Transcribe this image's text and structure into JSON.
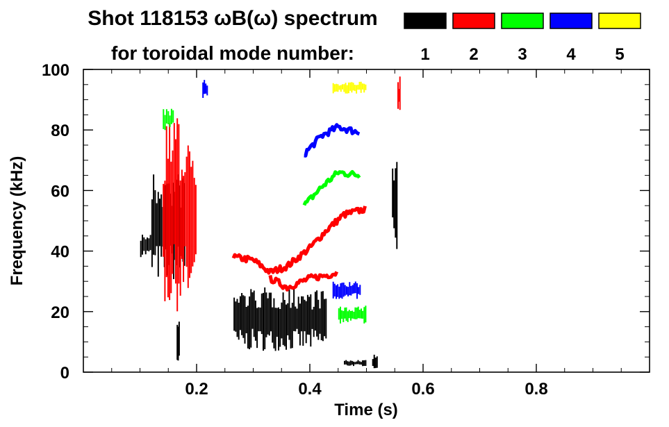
{
  "chart_data": {
    "type": "spectrogram",
    "title_line1": "Shot 118153 ωB(ω) spectrum",
    "title_line2": "for toroidal mode number:",
    "xlabel": "Time (s)",
    "ylabel": "Frequency (kHz)",
    "xlim": [
      0.0,
      1.0
    ],
    "ylim": [
      0,
      100
    ],
    "x_ticks": [
      {
        "value": 0.2,
        "label": "0.2"
      },
      {
        "value": 0.4,
        "label": "0.4"
      },
      {
        "value": 0.6,
        "label": "0.6"
      },
      {
        "value": 0.8,
        "label": "0.8"
      }
    ],
    "y_ticks": [
      {
        "value": 0,
        "label": "0"
      },
      {
        "value": 20,
        "label": "20"
      },
      {
        "value": 40,
        "label": "40"
      },
      {
        "value": 60,
        "label": "60"
      },
      {
        "value": 80,
        "label": "80"
      },
      {
        "value": 100,
        "label": "100"
      }
    ],
    "legend": [
      {
        "n": "1",
        "color": "#000000"
      },
      {
        "n": "2",
        "color": "#ff0000"
      },
      {
        "n": "3",
        "color": "#00ff00"
      },
      {
        "n": "4",
        "color": "#0000ff"
      },
      {
        "n": "5",
        "color": "#ffff00"
      }
    ],
    "series": [
      {
        "name": "n=1",
        "color": "#000000",
        "bands": [
          {
            "t": [
              0.1,
              0.12
            ],
            "f": [
              38,
              46
            ]
          },
          {
            "t": [
              0.12,
              0.18
            ],
            "f": [
              30,
              66
            ]
          },
          {
            "t": [
              0.165,
              0.17
            ],
            "f": [
              2,
              18
            ]
          },
          {
            "t": [
              0.265,
              0.43
            ],
            "f": [
              7,
              28
            ]
          },
          {
            "t": [
              0.46,
              0.5
            ],
            "f": [
              2,
              4
            ]
          },
          {
            "t": [
              0.51,
              0.52
            ],
            "f": [
              1,
              6
            ]
          },
          {
            "t": [
              0.545,
              0.555
            ],
            "f": [
              40,
              72
            ]
          }
        ]
      },
      {
        "name": "n=2",
        "color": "#ff0000",
        "trace_upper": [
          [
            0.265,
            38
          ],
          [
            0.3,
            37
          ],
          [
            0.33,
            33
          ],
          [
            0.36,
            35
          ],
          [
            0.4,
            41
          ],
          [
            0.43,
            47
          ],
          [
            0.46,
            52
          ],
          [
            0.5,
            54
          ]
        ],
        "trace_lower": [
          [
            0.33,
            31
          ],
          [
            0.36,
            28
          ],
          [
            0.4,
            31
          ],
          [
            0.43,
            32
          ],
          [
            0.45,
            33
          ]
        ],
        "bands": [
          {
            "t": [
              0.14,
              0.2
            ],
            "f": [
              20,
              84
            ]
          },
          {
            "t": [
              0.555,
              0.56
            ],
            "f": [
              85,
              98
            ]
          }
        ]
      },
      {
        "name": "n=3",
        "color": "#00ff00",
        "trace": [
          [
            0.39,
            55
          ],
          [
            0.42,
            61
          ],
          [
            0.45,
            66
          ],
          [
            0.49,
            65
          ]
        ],
        "bands": [
          {
            "t": [
              0.14,
              0.16
            ],
            "f": [
              80,
              87
            ]
          },
          {
            "t": [
              0.45,
              0.5
            ],
            "f": [
              16,
              22
            ]
          }
        ]
      },
      {
        "name": "n=4",
        "color": "#0000ff",
        "trace": [
          [
            0.39,
            72
          ],
          [
            0.42,
            78
          ],
          [
            0.45,
            81
          ],
          [
            0.49,
            79
          ]
        ],
        "bands": [
          {
            "t": [
              0.44,
              0.49
            ],
            "f": [
              24,
              30
            ]
          },
          {
            "t": [
              0.21,
              0.22
            ],
            "f": [
              90,
              97
            ]
          }
        ]
      },
      {
        "name": "n=5",
        "color": "#ffff00",
        "bands": [
          {
            "t": [
              0.44,
              0.5
            ],
            "f": [
              92,
              96
            ]
          }
        ]
      }
    ]
  }
}
